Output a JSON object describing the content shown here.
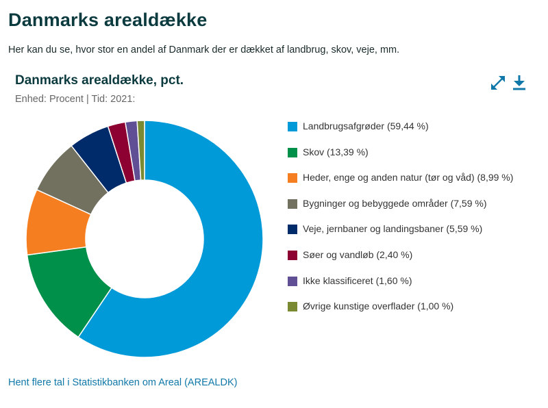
{
  "page": {
    "title": "Danmarks arealdække",
    "intro": "Her kan du se, hvor stor en andel af Danmark der er dækket af landbrug, skov, veje, mm.",
    "link": "Hent flere tal i Statistikbanken om Areal (AREALDK)"
  },
  "toolbar": {
    "expand_icon": "expand-icon",
    "download_icon": "download-icon",
    "icon_color": "#1078a8"
  },
  "chart_data": {
    "type": "pie",
    "donut": true,
    "title": "Danmarks arealdække, pct.",
    "subtitle": "Enhed: Procent | Tid: 2021:",
    "legend_position": "right",
    "slices": [
      {
        "label": "Landbrugsafgrøder (59,44 %)",
        "value": 59.44,
        "color": "#009ad8"
      },
      {
        "label": "Skov (13,39 %)",
        "value": 13.39,
        "color": "#00904a"
      },
      {
        "label": "Heder, enge og anden natur (tør og våd) (8,99 %)",
        "value": 8.99,
        "color": "#f57f20"
      },
      {
        "label": "Bygninger og bebyggede områder (7,59 %)",
        "value": 7.59,
        "color": "#72705f"
      },
      {
        "label": "Veje, jernbaner og landingsbaner (5,59 %)",
        "value": 5.59,
        "color": "#002b6b"
      },
      {
        "label": "Søer og vandløb (2,40 %)",
        "value": 2.4,
        "color": "#8c0032"
      },
      {
        "label": "Ikke klassificeret (1,60 %)",
        "value": 1.6,
        "color": "#604f94"
      },
      {
        "label": "Øvrige kunstige overflader (1,00 %)",
        "value": 1.0,
        "color": "#7a8a32"
      }
    ]
  }
}
